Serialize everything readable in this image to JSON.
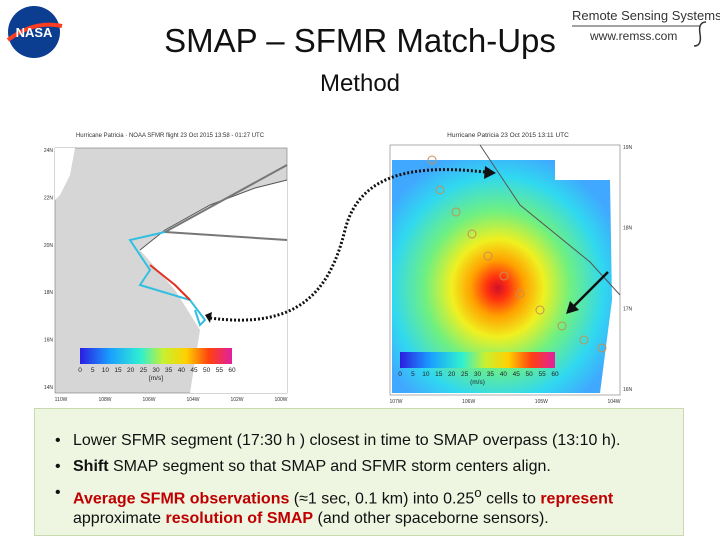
{
  "header": {
    "title": "SMAP – SFMR Match-Ups",
    "subtitle": "Method",
    "logo": "NASA",
    "org": "Remote Sensing Systems",
    "url": "www.remss.com"
  },
  "left_map": {
    "title": "Hurricane Patricia · NOAA SFMR flight 23 Oct 2015 13:58 - 01:27 UTC",
    "lat_labels": [
      "24N",
      "22N",
      "20N",
      "18N",
      "16N",
      "14N"
    ],
    "lon_labels": [
      "110W",
      "108W",
      "106W",
      "104W",
      "102W",
      "100W"
    ],
    "colorbar_ticks": [
      0,
      5,
      10,
      15,
      20,
      25,
      30,
      35,
      40,
      45,
      50,
      55,
      60
    ],
    "colorbar_unit": "[m/s]"
  },
  "right_map": {
    "title": "Hurricane Patricia 23 Oct 2015 13:11 UTC",
    "lat_labels": [
      "19N",
      "18N",
      "17N",
      "16N"
    ],
    "lon_labels": [
      "107W",
      "106W",
      "105W",
      "104W"
    ],
    "colorbar_ticks": [
      0,
      5,
      10,
      15,
      20,
      25,
      30,
      35,
      40,
      45,
      50,
      55,
      60
    ],
    "colorbar_unit": "(m/s)"
  },
  "bullets": [
    [
      {
        "text": "Lower SFMR segment (17:30 h ) closest in time to SMAP overpass (13:10 h)."
      }
    ],
    [
      {
        "text": "Shift",
        "style": "bold"
      },
      {
        "text": " SMAP segment so that SMAP and SFMR storm centers align."
      }
    ],
    [
      {
        "text": "Average SFMR observations",
        "style": "red"
      },
      {
        "text": " (≈1 sec, 0.1 km) into 0.25"
      },
      {
        "text": "o",
        "style": "sup"
      },
      {
        "text": " cells to "
      },
      {
        "text": "represent",
        "style": "red"
      },
      {
        "text": " approximate "
      },
      {
        "text": "resolution of SMAP",
        "style": "red"
      },
      {
        "text": " (and other spaceborne sensors)."
      }
    ]
  ]
}
